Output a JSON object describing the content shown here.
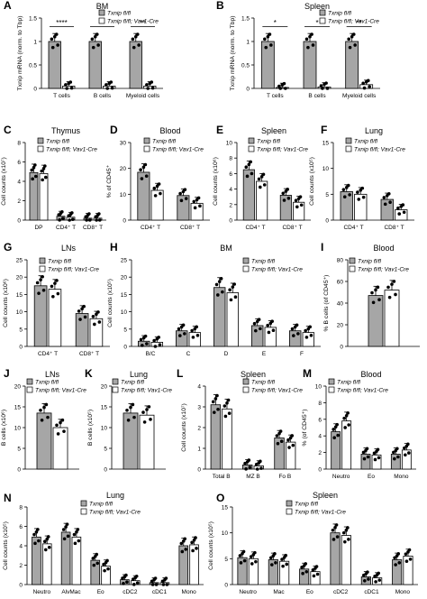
{
  "figure": {
    "legend_labels": [
      "Txnip fl/fl",
      "Txnip fl/fl; Vav1-Cre"
    ],
    "colors": {
      "ctrl": "#a6a6a6",
      "cre": "#ffffff",
      "stroke": "#000000"
    }
  },
  "chart_data": [
    {
      "letter": "A",
      "type": "bar",
      "title": "BM",
      "ylabel": "Txnip mRNA (norm. to Tbp)",
      "ylim": [
        0,
        1.5
      ],
      "yticks": [
        0,
        0.5,
        1.0,
        1.5
      ],
      "categories": [
        "T cells",
        "B cells",
        "Myeloid cells"
      ],
      "series": [
        {
          "name": "Txnip fl/fl",
          "values": [
            1.0,
            1.0,
            1.0
          ]
        },
        {
          "name": "Txnip fl/fl; Vav1-Cre",
          "values": [
            0.05,
            0.05,
            0.05
          ]
        }
      ],
      "significance": [
        "****",
        "*",
        "**"
      ],
      "legend": "top-right"
    },
    {
      "letter": "B",
      "type": "bar",
      "title": "Spleen",
      "ylabel": "Txnip mRNA (norm. to Tbp)",
      "ylim": [
        0,
        1.5
      ],
      "yticks": [
        0,
        0.5,
        1.0,
        1.5
      ],
      "categories": [
        "T cells",
        "B cells",
        "Myeloid cells"
      ],
      "series": [
        {
          "name": "Txnip fl/fl",
          "values": [
            1.0,
            1.0,
            1.0
          ]
        },
        {
          "name": "Txnip fl/fl; Vav1-Cre",
          "values": [
            0.02,
            0.03,
            0.08
          ]
        }
      ],
      "significance": [
        "*",
        "*",
        "**"
      ],
      "legend": "top-right"
    },
    {
      "letter": "C",
      "type": "bar",
      "title": "Thymus",
      "ylabel": "Cell counts (x10⁷)",
      "ylim": [
        0,
        8
      ],
      "yticks": [
        0,
        2,
        4,
        6,
        8
      ],
      "categories": [
        "DP",
        "CD4⁺ T",
        "CD8⁺ T"
      ],
      "series": [
        {
          "name": "Txnip fl/fl",
          "values": [
            4.9,
            0.4,
            0.2
          ]
        },
        {
          "name": "Txnip fl/fl; Vav1-Cre",
          "values": [
            4.8,
            0.3,
            0.2
          ]
        }
      ],
      "legend": "top-right"
    },
    {
      "letter": "D",
      "type": "bar",
      "title": "Blood",
      "ylabel": "% of CD45⁺",
      "ylim": [
        0,
        30
      ],
      "yticks": [
        0,
        10,
        20,
        30
      ],
      "categories": [
        "CD4⁺ T",
        "CD8⁺ T"
      ],
      "series": [
        {
          "name": "Txnip fl/fl",
          "values": [
            18.5,
            9.5
          ]
        },
        {
          "name": "Txnip fl/fl; Vav1-Cre",
          "values": [
            11.5,
            6.5
          ]
        }
      ],
      "legend": "top-right"
    },
    {
      "letter": "E",
      "type": "bar",
      "title": "Spleen",
      "ylabel": "Cell counts (x10⁶)",
      "ylim": [
        0,
        10
      ],
      "yticks": [
        0,
        2,
        4,
        6,
        8,
        10
      ],
      "categories": [
        "CD4⁺ T",
        "CD8⁺ T"
      ],
      "series": [
        {
          "name": "Txnip fl/fl",
          "values": [
            6.5,
            3.2
          ]
        },
        {
          "name": "Txnip fl/fl; Vav1-Cre",
          "values": [
            5.0,
            2.3
          ]
        }
      ],
      "legend": "top-right"
    },
    {
      "letter": "F",
      "type": "bar",
      "title": "Lung",
      "ylabel": "Cell counts (x10⁵)",
      "ylim": [
        0,
        15
      ],
      "yticks": [
        0,
        5,
        10,
        15
      ],
      "categories": [
        "CD4⁺ T",
        "CD8⁺ T"
      ],
      "series": [
        {
          "name": "Txnip fl/fl",
          "values": [
            5.5,
            4.0
          ]
        },
        {
          "name": "Txnip fl/fl; Vav1-Cre",
          "values": [
            5.0,
            2.0
          ]
        }
      ],
      "legend": "top-right"
    },
    {
      "letter": "G",
      "type": "bar",
      "title": "LNs",
      "ylabel": "Cell counts (x10⁶)",
      "ylim": [
        0,
        25
      ],
      "yticks": [
        0,
        5,
        10,
        15,
        20,
        25
      ],
      "categories": [
        "CD4⁺ T",
        "CD8⁺ T"
      ],
      "series": [
        {
          "name": "Txnip fl/fl",
          "values": [
            17.5,
            9.5
          ]
        },
        {
          "name": "Txnip fl/fl; Vav1-Cre",
          "values": [
            16.5,
            8.0
          ]
        }
      ],
      "legend": "top-right"
    },
    {
      "letter": "H",
      "type": "bar",
      "title": "BM",
      "ylabel": "Cell counts (x10⁵)",
      "ylim": [
        0,
        25
      ],
      "yticks": [
        0,
        5,
        10,
        15,
        20,
        25
      ],
      "categories": [
        "B/C",
        "C",
        "D",
        "E",
        "F"
      ],
      "series": [
        {
          "name": "Txnip fl/fl",
          "values": [
            1.5,
            4.5,
            17.0,
            6.0,
            4.5
          ]
        },
        {
          "name": "Txnip fl/fl; Vav1-Cre",
          "values": [
            1.2,
            4.0,
            15.5,
            5.5,
            4.0
          ]
        }
      ],
      "legend": "top-right"
    },
    {
      "letter": "I",
      "type": "bar",
      "title": "Blood",
      "ylabel": "% B cells (of CD45⁺)",
      "ylim": [
        0,
        80
      ],
      "yticks": [
        0,
        20,
        40,
        60,
        80
      ],
      "categories": [
        ""
      ],
      "series": [
        {
          "name": "Txnip fl/fl",
          "values": [
            47
          ]
        },
        {
          "name": "Txnip fl/fl; Vav1-Cre",
          "values": [
            52
          ]
        }
      ],
      "legend": "top"
    },
    {
      "letter": "J",
      "type": "bar",
      "title": "LNs",
      "ylabel": "B cells (x10⁶)",
      "ylim": [
        0,
        20
      ],
      "yticks": [
        0,
        5,
        10,
        15,
        20
      ],
      "categories": [
        ""
      ],
      "series": [
        {
          "name": "Txnip fl/fl",
          "values": [
            13.5
          ]
        },
        {
          "name": "Txnip fl/fl; Vav1-Cre",
          "values": [
            10.0
          ]
        }
      ],
      "legend": "top-right"
    },
    {
      "letter": "K",
      "type": "bar",
      "title": "Lung",
      "ylabel": "B cells (x10⁵)",
      "ylim": [
        0,
        20
      ],
      "yticks": [
        0,
        5,
        10,
        15,
        20
      ],
      "categories": [
        ""
      ],
      "series": [
        {
          "name": "Txnip fl/fl",
          "values": [
            13.5
          ]
        },
        {
          "name": "Txnip fl/fl; Vav1-Cre",
          "values": [
            13.0
          ]
        }
      ],
      "legend": "top-right"
    },
    {
      "letter": "L",
      "type": "bar",
      "title": "Spleen",
      "ylabel": "Cell counts (x10⁷)",
      "ylim": [
        0,
        4
      ],
      "yticks": [
        0,
        1,
        2,
        3,
        4
      ],
      "categories": [
        "Total B",
        "MZ B",
        "Fo B"
      ],
      "series": [
        {
          "name": "Txnip fl/fl",
          "values": [
            3.1,
            0.2,
            1.5
          ]
        },
        {
          "name": "Txnip fl/fl; Vav1-Cre",
          "values": [
            2.9,
            0.15,
            1.3
          ]
        }
      ],
      "legend": "top-right"
    },
    {
      "letter": "M",
      "type": "bar",
      "title": "Blood",
      "ylabel": "% (of CD45⁺)",
      "ylim": [
        0,
        10
      ],
      "yticks": [
        0,
        2,
        4,
        6,
        8,
        10
      ],
      "categories": [
        "Neutro",
        "Eo",
        "Mono"
      ],
      "series": [
        {
          "name": "Txnip fl/fl",
          "values": [
            4.5,
            1.8,
            1.8
          ]
        },
        {
          "name": "Txnip fl/fl; Vav1-Cre",
          "values": [
            5.8,
            1.7,
            2.3
          ]
        }
      ],
      "legend": "top-left"
    },
    {
      "letter": "N",
      "type": "bar",
      "title": "Lung",
      "ylabel": "Cell counts (x10⁵)",
      "ylim": [
        0,
        8
      ],
      "yticks": [
        0,
        2,
        4,
        6,
        8
      ],
      "categories": [
        "Neutro",
        "AlvMac",
        "Eo",
        "cDC2",
        "cDC1",
        "Mono"
      ],
      "series": [
        {
          "name": "Txnip fl/fl",
          "values": [
            4.9,
            5.4,
            2.5,
            0.5,
            0.2,
            4.0
          ]
        },
        {
          "name": "Txnip fl/fl; Vav1-Cre",
          "values": [
            4.2,
            4.9,
            1.9,
            0.4,
            0.2,
            4.1
          ]
        }
      ],
      "legend": "top-right"
    },
    {
      "letter": "O",
      "type": "bar",
      "title": "Spleen",
      "ylabel": "Cell counts (x10⁵)",
      "ylim": [
        0,
        15
      ],
      "yticks": [
        0,
        5,
        10,
        15
      ],
      "categories": [
        "Neutro",
        "Mac",
        "Eo",
        "cDC2",
        "cDC1",
        "Mono"
      ],
      "series": [
        {
          "name": "Txnip fl/fl",
          "values": [
            5.2,
            4.8,
            3.0,
            10.0,
            1.5,
            4.8
          ]
        },
        {
          "name": "Txnip fl/fl; Vav1-Cre",
          "values": [
            5.0,
            4.5,
            2.5,
            9.5,
            1.3,
            5.5
          ]
        }
      ],
      "legend": "top-right"
    }
  ]
}
